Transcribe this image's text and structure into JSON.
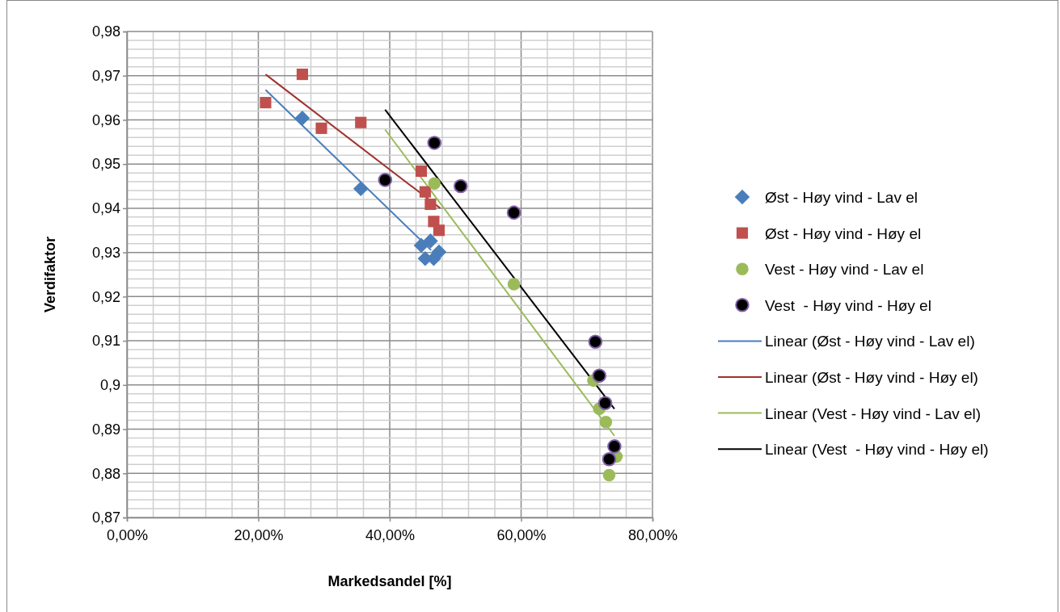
{
  "chart_data": {
    "type": "scatter",
    "xlabel": "Markedsandel [%]",
    "ylabel": "Verdifaktor",
    "xlim": [
      0,
      80
    ],
    "xticks": [
      {
        "value": 0,
        "label": "0,00%"
      },
      {
        "value": 20,
        "label": "20,00%"
      },
      {
        "value": 40,
        "label": "40,00%"
      },
      {
        "value": 60,
        "label": "60,00%"
      },
      {
        "value": 80,
        "label": "80,00%"
      }
    ],
    "ylim": [
      0.87,
      0.98
    ],
    "yticks": [
      {
        "value": 0.87,
        "label": "0,87"
      },
      {
        "value": 0.88,
        "label": "0,88"
      },
      {
        "value": 0.89,
        "label": "0,89"
      },
      {
        "value": 0.9,
        "label": "0,9"
      },
      {
        "value": 0.91,
        "label": "0,91"
      },
      {
        "value": 0.92,
        "label": "0,92"
      },
      {
        "value": 0.93,
        "label": "0,93"
      },
      {
        "value": 0.94,
        "label": "0,94"
      },
      {
        "value": 0.95,
        "label": "0,95"
      },
      {
        "value": 0.96,
        "label": "0,96"
      },
      {
        "value": 0.97,
        "label": "0,97"
      },
      {
        "value": 0.98,
        "label": "0,98"
      }
    ],
    "grid": true,
    "legend": "right",
    "series": [
      {
        "name": "Øst - Høy vind - Lav el",
        "marker": "diamond",
        "color": "#4a7ebb",
        "x": [
          26.7,
          35.6,
          44.8,
          46.2,
          45.4,
          46.7,
          47.5
        ],
        "values": [
          0.9604,
          0.9444,
          0.9316,
          0.9326,
          0.9286,
          0.9286,
          0.9301
        ]
      },
      {
        "name": "Øst - Høy vind - Høy el",
        "marker": "square",
        "color": "#c0504d",
        "x": [
          21.1,
          26.7,
          29.6,
          35.6,
          44.8,
          45.4,
          46.2,
          46.7,
          47.5
        ],
        "values": [
          0.9639,
          0.9703,
          0.9581,
          0.9594,
          0.9484,
          0.9437,
          0.9409,
          0.937,
          0.935
        ]
      },
      {
        "name": "Vest - Høy vind - Lav el",
        "marker": "circle",
        "color": "#9bbb59",
        "x": [
          46.8,
          58.9,
          71.0,
          71.9,
          72.9,
          74.5,
          73.4
        ],
        "values": [
          0.9456,
          0.9228,
          0.901,
          0.8946,
          0.8916,
          0.8838,
          0.8796
        ]
      },
      {
        "name": "Vest  - Høy vind - Høy el",
        "marker": "circle",
        "color": "#000000",
        "x": [
          39.3,
          46.8,
          50.8,
          58.9,
          71.3,
          71.9,
          72.8,
          74.2,
          73.4
        ],
        "values": [
          0.9464,
          0.9548,
          0.945,
          0.939,
          0.9098,
          0.9021,
          0.8959,
          0.8861,
          0.8832
        ]
      },
      {
        "name": "Linear (Øst - Høy vind - Lav el)",
        "type": "line",
        "marker": "none",
        "color": "#4a7ebb",
        "x": [
          21.1,
          46.3
        ],
        "values": [
          0.9668,
          0.9305
        ]
      },
      {
        "name": "Linear (Øst - Høy vind - Høy el)",
        "type": "line",
        "marker": "none",
        "color": "#a0322f",
        "x": [
          21.1,
          47.7
        ],
        "values": [
          0.9703,
          0.94
        ]
      },
      {
        "name": "Linear (Vest - Høy vind - Lav el)",
        "type": "line",
        "marker": "none",
        "color": "#9bbb59",
        "x": [
          39.3,
          74.2
        ],
        "values": [
          0.9578,
          0.8885
        ]
      },
      {
        "name": "Linear (Vest  - Høy vind - Høy el)",
        "type": "line",
        "marker": "none",
        "color": "#000000",
        "x": [
          39.3,
          74.2
        ],
        "values": [
          0.9623,
          0.8946
        ]
      }
    ]
  }
}
